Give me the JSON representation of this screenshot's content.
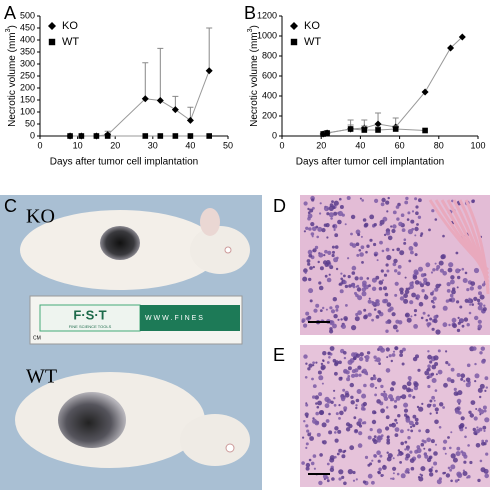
{
  "chart_data": [
    {
      "type": "line",
      "panel": "A",
      "x_label": "Days after tumor cell implantation",
      "y_label": [
        "Necrotic volume (mm",
        "3",
        ")"
      ],
      "xlim": [
        0,
        50
      ],
      "xticks": [
        0,
        10,
        20,
        30,
        40,
        50
      ],
      "ylim": [
        0,
        500
      ],
      "yticks": [
        0,
        50,
        100,
        150,
        200,
        250,
        300,
        350,
        400,
        450,
        500
      ],
      "legend": "top-left",
      "line_color": "#999999",
      "series": [
        {
          "name": "KO",
          "marker": "diamond",
          "color": "#000000",
          "x": [
            8,
            11,
            15,
            18,
            28,
            32,
            36,
            40,
            45
          ],
          "values": [
            0,
            0,
            0,
            5,
            155,
            148,
            110,
            65,
            272
          ],
          "errors": [
            null,
            null,
            null,
            15,
            150,
            217,
            55,
            55,
            178
          ]
        },
        {
          "name": "WT",
          "marker": "square",
          "color": "#000000",
          "x": [
            8,
            11,
            15,
            18,
            28,
            32,
            36,
            40,
            45
          ],
          "values": [
            0,
            0,
            0,
            0,
            0,
            0,
            0,
            0,
            0
          ],
          "errors": [
            null,
            null,
            null,
            null,
            null,
            null,
            null,
            null,
            null
          ]
        }
      ]
    },
    {
      "type": "line",
      "panel": "B",
      "x_label": "Days after tumor cell implantation",
      "y_label": [
        "Necrotic volume (mm",
        "3",
        ")"
      ],
      "xlim": [
        0,
        100
      ],
      "xticks": [
        0,
        20,
        40,
        60,
        80,
        100
      ],
      "ylim": [
        0,
        1200
      ],
      "yticks": [
        0,
        200,
        400,
        600,
        800,
        1000,
        1200
      ],
      "legend": "top-left",
      "line_color": "#999999",
      "series": [
        {
          "name": "KO",
          "marker": "diamond",
          "color": "#000000",
          "x": [
            21,
            23,
            35,
            42,
            49,
            58,
            73,
            86,
            92
          ],
          "values": [
            20,
            30,
            70,
            80,
            120,
            90,
            440,
            880,
            990
          ],
          "errors": [
            null,
            15,
            90,
            80,
            110,
            90,
            null,
            null,
            null
          ]
        },
        {
          "name": "WT",
          "marker": "square",
          "color": "#000000",
          "x": [
            21,
            23,
            35,
            42,
            49,
            58,
            73
          ],
          "values": [
            20,
            30,
            70,
            60,
            60,
            70,
            55
          ],
          "errors": [
            null,
            10,
            40,
            40,
            30,
            30,
            null
          ]
        }
      ]
    }
  ],
  "panels": {
    "C": {
      "label": "C",
      "top_text": "KO",
      "bottom_text": "WT",
      "ruler_brand": "F·S·T",
      "ruler_sub": "FINE SCIENCE TOOLS",
      "ruler_url": "W W W . F I N E S",
      "ruler_unit": "CM"
    },
    "D": {
      "label": "D"
    },
    "E": {
      "label": "E"
    }
  }
}
